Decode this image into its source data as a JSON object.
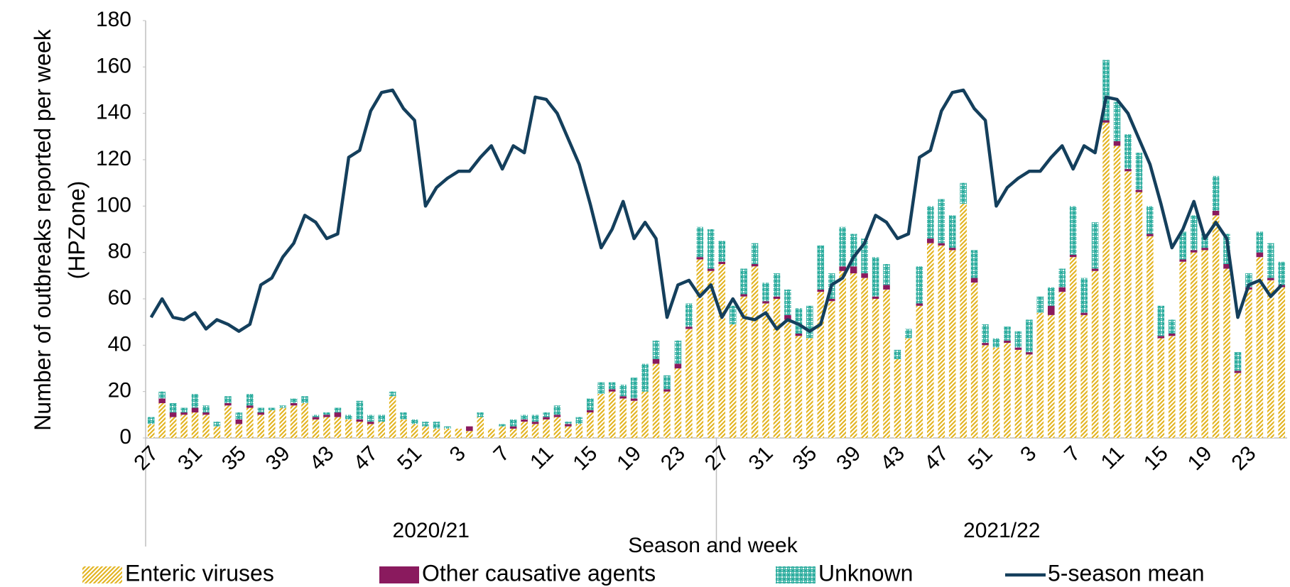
{
  "chart_data": {
    "type": "bar",
    "stacked": true,
    "x_label": "Season and week",
    "y_label": "Number of outbreaks reported per week (HPZone)",
    "groups": [
      "2020/21",
      "2021/22"
    ],
    "categories": [
      "27",
      null,
      null,
      null,
      "31",
      null,
      null,
      null,
      "35",
      null,
      null,
      null,
      "39",
      null,
      null,
      null,
      "43",
      null,
      null,
      null,
      "47",
      null,
      null,
      null,
      "51",
      null,
      null,
      null,
      "3",
      null,
      null,
      null,
      "7",
      null,
      null,
      null,
      "11",
      null,
      null,
      null,
      "15",
      null,
      null,
      null,
      "19",
      null,
      null,
      null,
      "23",
      null,
      null,
      null,
      "27",
      null,
      null,
      null,
      "31",
      null,
      null,
      null,
      "35",
      null,
      null,
      null,
      "39",
      null,
      null,
      null,
      "43",
      null,
      null,
      null,
      "47",
      null,
      null,
      null,
      "51",
      null,
      null,
      null,
      "3",
      null,
      null,
      null,
      "7",
      null,
      null,
      null,
      "11",
      null,
      null,
      null,
      "15",
      null,
      null,
      null,
      "19",
      null,
      null,
      null,
      "23",
      null,
      null,
      null
    ],
    "ylim": [
      0,
      180
    ],
    "yticks": [
      0,
      20,
      40,
      60,
      80,
      100,
      120,
      140,
      160,
      180
    ],
    "grid": false,
    "legend": "bottom",
    "series": [
      {
        "name": "Enteric viruses",
        "type": "bar",
        "pattern": "diagonal",
        "color": "#e3b524",
        "values": [
          6,
          15,
          9,
          10,
          11,
          10,
          5,
          14,
          6,
          13,
          10,
          12,
          13,
          14,
          15,
          8,
          9,
          9,
          8,
          7,
          6,
          7,
          18,
          8,
          6,
          5,
          4,
          4,
          4,
          3,
          9,
          4,
          5,
          4,
          7,
          6,
          8,
          9,
          5,
          6,
          11,
          19,
          20,
          17,
          16,
          20,
          32,
          20,
          30,
          47,
          77,
          72,
          75,
          49,
          61,
          74,
          58,
          60,
          51,
          44,
          43,
          63,
          59,
          72,
          71,
          69,
          60,
          64,
          34,
          43,
          57,
          84,
          83,
          81,
          101,
          67,
          40,
          39,
          41,
          38,
          36,
          54,
          53,
          63,
          78,
          53,
          72,
          136,
          126,
          115,
          106,
          87,
          43,
          44,
          76,
          80,
          81,
          96,
          73,
          28,
          64,
          78,
          68,
          65
        ]
      },
      {
        "name": "Other causative agents",
        "type": "bar",
        "pattern": "solid",
        "color": "#8a1a5e",
        "values": [
          0,
          2,
          2,
          1,
          2,
          1,
          0,
          1,
          2,
          1,
          1,
          0,
          0,
          1,
          0,
          1,
          1,
          2,
          0,
          1,
          1,
          0,
          0,
          0,
          0,
          0,
          0,
          0,
          0,
          2,
          0,
          0,
          0,
          1,
          1,
          1,
          1,
          1,
          1,
          0,
          1,
          0,
          1,
          1,
          1,
          0,
          2,
          1,
          2,
          1,
          1,
          1,
          1,
          0,
          1,
          1,
          1,
          1,
          2,
          1,
          0,
          1,
          1,
          2,
          3,
          2,
          1,
          2,
          0,
          0,
          1,
          2,
          1,
          1,
          0,
          2,
          1,
          0,
          1,
          1,
          1,
          0,
          4,
          2,
          1,
          1,
          1,
          1,
          2,
          1,
          1,
          1,
          1,
          1,
          1,
          1,
          1,
          2,
          2,
          1,
          1,
          2,
          1,
          1
        ]
      },
      {
        "name": "Unknown",
        "type": "bar",
        "pattern": "cross",
        "color": "#1ea898",
        "values": [
          3,
          3,
          4,
          2,
          6,
          3,
          2,
          3,
          3,
          5,
          2,
          1,
          1,
          2,
          3,
          1,
          1,
          2,
          2,
          8,
          3,
          3,
          2,
          3,
          2,
          2,
          3,
          1,
          0,
          0,
          2,
          0,
          1,
          3,
          2,
          3,
          2,
          4,
          1,
          3,
          5,
          5,
          3,
          5,
          9,
          12,
          8,
          6,
          10,
          10,
          13,
          17,
          9,
          8,
          11,
          9,
          8,
          10,
          11,
          11,
          14,
          19,
          11,
          17,
          14,
          15,
          17,
          9,
          4,
          4,
          16,
          14,
          19,
          14,
          9,
          12,
          8,
          4,
          6,
          7,
          14,
          7,
          8,
          8,
          21,
          15,
          20,
          26,
          17,
          15,
          16,
          12,
          13,
          6,
          12,
          15,
          6,
          15,
          13,
          8,
          6,
          9,
          15,
          10
        ]
      },
      {
        "name": "5-season mean",
        "type": "line",
        "color": "#143f5c",
        "values": [
          52,
          60,
          52,
          51,
          54,
          47,
          51,
          49,
          46,
          49,
          66,
          69,
          78,
          84,
          96,
          93,
          86,
          88,
          121,
          124,
          141,
          149,
          150,
          142,
          137,
          100,
          108,
          112,
          115,
          115,
          121,
          126,
          116,
          126,
          123,
          147,
          146,
          140,
          129,
          118,
          101,
          82,
          90,
          102,
          86,
          93,
          86,
          52,
          66,
          68,
          61,
          66,
          52,
          60,
          52,
          51,
          54,
          47,
          51,
          49,
          46,
          49,
          66,
          69,
          78,
          84,
          96,
          93,
          86,
          88,
          121,
          124,
          141,
          149,
          150,
          142,
          137,
          100,
          108,
          112,
          115,
          115,
          121,
          126,
          116,
          126,
          123,
          147,
          146,
          140,
          129,
          118,
          101,
          82,
          90,
          102,
          86,
          93,
          86,
          52,
          66,
          68,
          61,
          66
        ]
      }
    ]
  }
}
